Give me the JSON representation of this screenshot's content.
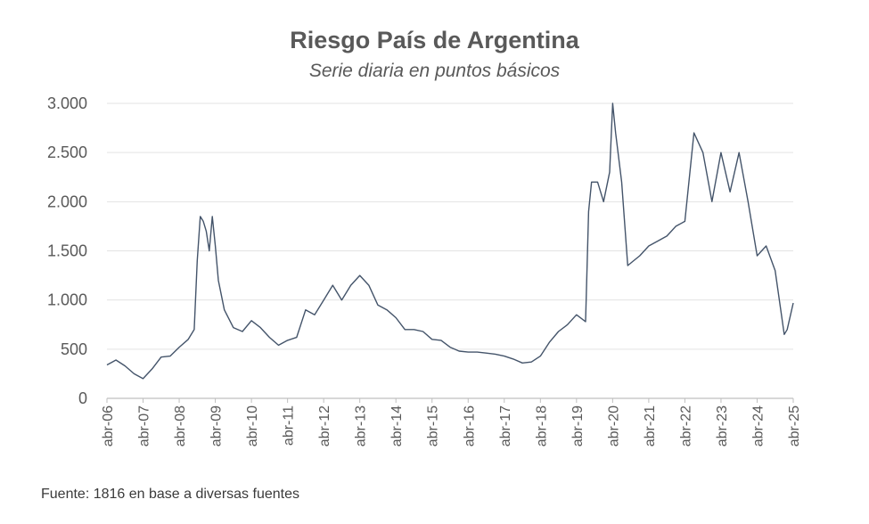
{
  "chart_data": {
    "type": "line",
    "title": "Riesgo País de Argentina",
    "subtitle": "Serie diaria en puntos básicos",
    "source": "Fuente: 1816  en base a diversas fuentes",
    "ylim": [
      0,
      3000
    ],
    "yticks": [
      0,
      500,
      1000,
      1500,
      2000,
      2500,
      3000
    ],
    "ytick_labels": [
      "0",
      "500",
      "1.000",
      "1.500",
      "2.000",
      "2.500",
      "3.000"
    ],
    "xlim": [
      "2006-04",
      "2025-04"
    ],
    "xtick_labels": [
      "abr-06",
      "abr-07",
      "abr-08",
      "abr-09",
      "abr-10",
      "abr-11",
      "abr-12",
      "abr-13",
      "abr-14",
      "abr-15",
      "abr-16",
      "abr-17",
      "abr-18",
      "abr-19",
      "abr-20",
      "abr-21",
      "abr-22",
      "abr-23",
      "abr-24",
      "abr-25"
    ],
    "grid": "horizontal",
    "line_color": "#44546A",
    "series": [
      {
        "points": [
          [
            "2006-04",
            340
          ],
          [
            "2006-07",
            390
          ],
          [
            "2006-10",
            330
          ],
          [
            "2007-01",
            250
          ],
          [
            "2007-04",
            200
          ],
          [
            "2007-07",
            300
          ],
          [
            "2007-10",
            420
          ],
          [
            "2008-01",
            430
          ],
          [
            "2008-04",
            520
          ],
          [
            "2008-07",
            600
          ],
          [
            "2008-09",
            700
          ],
          [
            "2008-10",
            1400
          ],
          [
            "2008-11",
            1850
          ],
          [
            "2008-12",
            1800
          ],
          [
            "2009-01",
            1700
          ],
          [
            "2009-02",
            1500
          ],
          [
            "2009-03",
            1850
          ],
          [
            "2009-04",
            1550
          ],
          [
            "2009-05",
            1200
          ],
          [
            "2009-07",
            900
          ],
          [
            "2009-10",
            720
          ],
          [
            "2010-01",
            680
          ],
          [
            "2010-04",
            790
          ],
          [
            "2010-07",
            720
          ],
          [
            "2010-10",
            620
          ],
          [
            "2011-01",
            540
          ],
          [
            "2011-04",
            590
          ],
          [
            "2011-07",
            620
          ],
          [
            "2011-10",
            900
          ],
          [
            "2012-01",
            850
          ],
          [
            "2012-04",
            1000
          ],
          [
            "2012-07",
            1150
          ],
          [
            "2012-10",
            1000
          ],
          [
            "2013-01",
            1150
          ],
          [
            "2013-04",
            1250
          ],
          [
            "2013-07",
            1150
          ],
          [
            "2013-10",
            950
          ],
          [
            "2014-01",
            900
          ],
          [
            "2014-04",
            820
          ],
          [
            "2014-07",
            700
          ],
          [
            "2014-10",
            700
          ],
          [
            "2015-01",
            680
          ],
          [
            "2015-04",
            600
          ],
          [
            "2015-07",
            590
          ],
          [
            "2015-10",
            520
          ],
          [
            "2016-01",
            480
          ],
          [
            "2016-04",
            470
          ],
          [
            "2016-07",
            470
          ],
          [
            "2016-10",
            460
          ],
          [
            "2017-01",
            450
          ],
          [
            "2017-04",
            430
          ],
          [
            "2017-07",
            400
          ],
          [
            "2017-10",
            360
          ],
          [
            "2018-01",
            370
          ],
          [
            "2018-04",
            430
          ],
          [
            "2018-07",
            570
          ],
          [
            "2018-10",
            680
          ],
          [
            "2019-01",
            750
          ],
          [
            "2019-04",
            850
          ],
          [
            "2019-07",
            780
          ],
          [
            "2019-08",
            1900
          ],
          [
            "2019-09",
            2200
          ],
          [
            "2019-11",
            2200
          ],
          [
            "2020-01",
            2000
          ],
          [
            "2020-03",
            2300
          ],
          [
            "2020-04",
            3000
          ],
          [
            "2020-05",
            2700
          ],
          [
            "2020-07",
            2200
          ],
          [
            "2020-09",
            1350
          ],
          [
            "2020-11",
            1400
          ],
          [
            "2021-01",
            1450
          ],
          [
            "2021-04",
            1550
          ],
          [
            "2021-07",
            1600
          ],
          [
            "2021-10",
            1650
          ],
          [
            "2022-01",
            1750
          ],
          [
            "2022-04",
            1800
          ],
          [
            "2022-07",
            2700
          ],
          [
            "2022-10",
            2500
          ],
          [
            "2023-01",
            2000
          ],
          [
            "2023-04",
            2500
          ],
          [
            "2023-07",
            2100
          ],
          [
            "2023-10",
            2500
          ],
          [
            "2024-01",
            2000
          ],
          [
            "2024-04",
            1450
          ],
          [
            "2024-07",
            1550
          ],
          [
            "2024-10",
            1300
          ],
          [
            "2025-01",
            650
          ],
          [
            "2025-02",
            700
          ],
          [
            "2025-04",
            970
          ]
        ]
      }
    ]
  }
}
